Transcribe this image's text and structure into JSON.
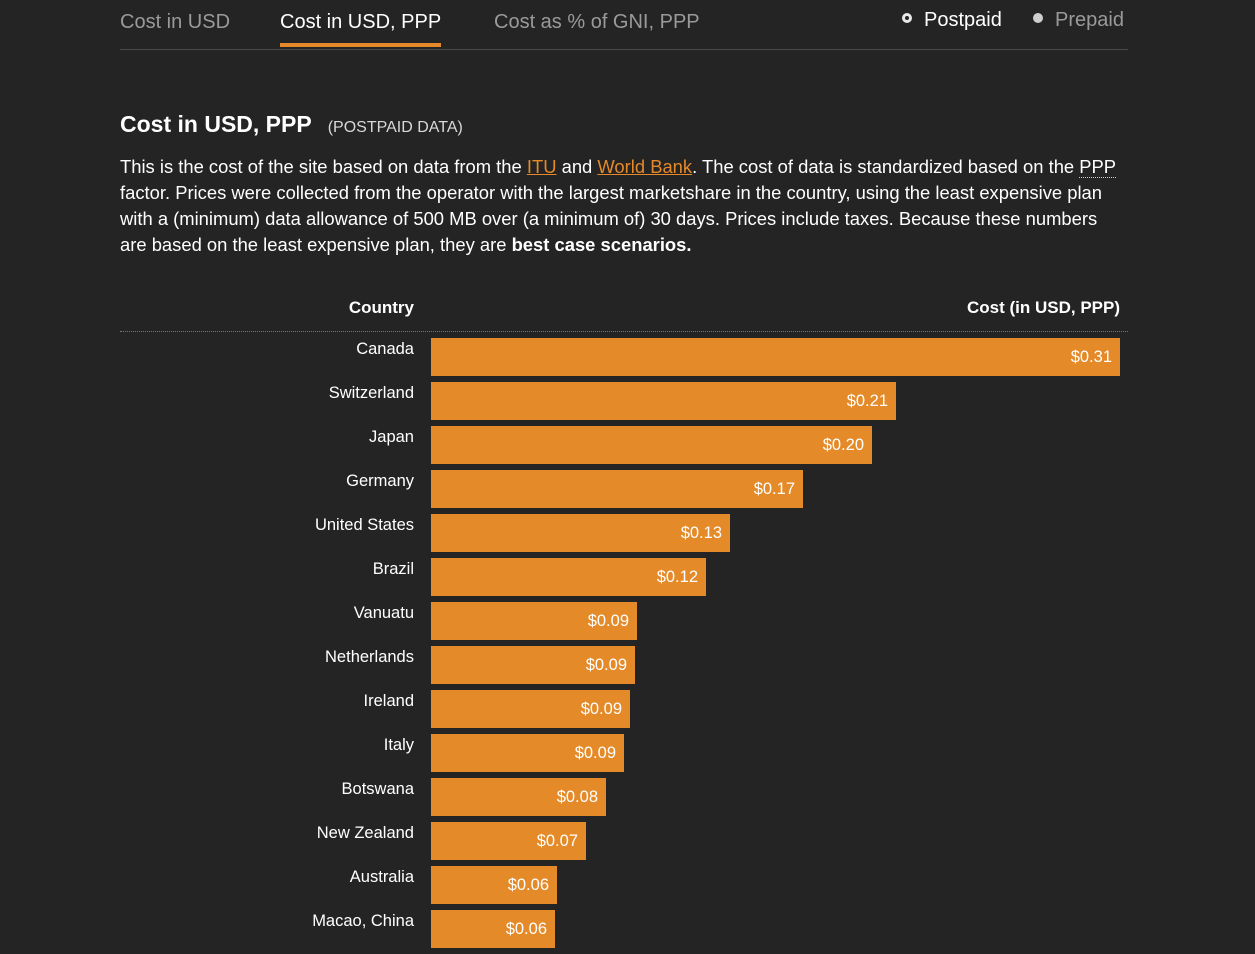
{
  "tabs": [
    {
      "label": "Cost in USD",
      "active": false
    },
    {
      "label": "Cost in USD, PPP",
      "active": true
    },
    {
      "label": "Cost as % of GNI, PPP",
      "active": false
    }
  ],
  "plan_options": [
    {
      "label": "Postpaid",
      "selected": true
    },
    {
      "label": "Prepaid",
      "selected": false
    }
  ],
  "heading": {
    "title": "Cost in USD, PPP",
    "subtitle": "(POSTPAID DATA)"
  },
  "description": {
    "part1": "This is the cost of the site based on data from the ",
    "link_itu": "ITU",
    "part2": " and ",
    "link_worldbank": "World Bank",
    "part3": ". The cost of data is standardized based on the ",
    "abbr_ppp": "PPP",
    "part4": " factor. Prices were collected from the operator with the largest marketshare in the country, using the least expensive plan with a (minimum) data allowance of 500 MB over (a minimum of) 30 days. Prices include taxes. Because these numbers are based on the least expensive plan, they are ",
    "emphasis": "best case scenarios."
  },
  "colors": {
    "background": "#242424",
    "accent": "#e5892a",
    "bar": "#e58a28",
    "text": "#ffffff",
    "muted": "#9a9a9a"
  },
  "chart_data": {
    "type": "bar",
    "orientation": "horizontal",
    "column_headers": {
      "category": "Country",
      "value": "Cost (in USD, PPP)"
    },
    "categories": [
      "Canada",
      "Switzerland",
      "Japan",
      "Germany",
      "United States",
      "Brazil",
      "Vanuatu",
      "Netherlands",
      "Ireland",
      "Italy",
      "Botswana",
      "New Zealand",
      "Australia",
      "Macao, China"
    ],
    "values": [
      0.311,
      0.21,
      0.199,
      0.168,
      0.135,
      0.124,
      0.093,
      0.092,
      0.09,
      0.087,
      0.079,
      0.07,
      0.057,
      0.056
    ],
    "labels": [
      "$0.31",
      "$0.21",
      "$0.20",
      "$0.17",
      "$0.13",
      "$0.12",
      "$0.09",
      "$0.09",
      "$0.09",
      "$0.09",
      "$0.08",
      "$0.07",
      "$0.06",
      "$0.06"
    ],
    "xlim": [
      0,
      0.311
    ],
    "grid": false,
    "legend": "none"
  }
}
